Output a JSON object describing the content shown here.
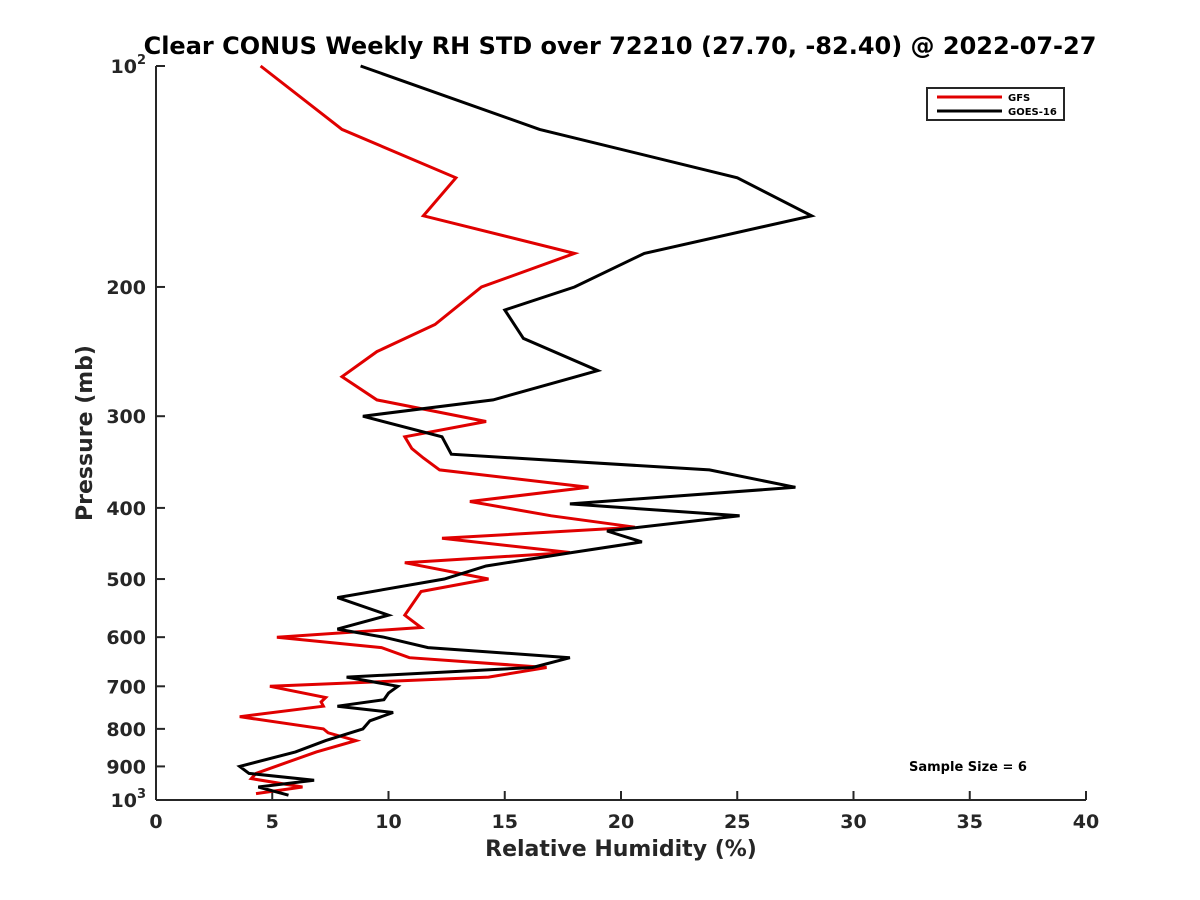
{
  "chart_data": {
    "type": "line",
    "title": "Clear CONUS Weekly RH STD over 72210 (27.70, -82.40) @ 2022-07-27",
    "xlabel": "Relative Humidity (%)",
    "ylabel": "Pressure (mb)",
    "xlim": [
      0,
      40
    ],
    "ylim": [
      100,
      1000
    ],
    "y_scale": "log",
    "y_reversed": true,
    "x_ticks": [
      "0",
      "5",
      "10",
      "15",
      "20",
      "25",
      "30",
      "35",
      "40"
    ],
    "x_tick_values": [
      0,
      5,
      10,
      15,
      20,
      25,
      30,
      35,
      40
    ],
    "y_ticks": [
      {
        "value": 100,
        "base": "10",
        "exp": "2"
      },
      {
        "value": 200,
        "base": "200",
        "exp": ""
      },
      {
        "value": 300,
        "base": "300",
        "exp": ""
      },
      {
        "value": 400,
        "base": "400",
        "exp": ""
      },
      {
        "value": 500,
        "base": "500",
        "exp": ""
      },
      {
        "value": 600,
        "base": "600",
        "exp": ""
      },
      {
        "value": 700,
        "base": "700",
        "exp": ""
      },
      {
        "value": 800,
        "base": "800",
        "exp": ""
      },
      {
        "value": 900,
        "base": "900",
        "exp": ""
      },
      {
        "value": 1000,
        "base": "10",
        "exp": "3"
      }
    ],
    "grid": false,
    "legend_position": "top-right",
    "annotation": "Sample Size = 6",
    "series": [
      {
        "name": "GFS",
        "color": "#e00000",
        "x": [
          4.5,
          8.0,
          12.9,
          11.5,
          18.0,
          14.0,
          12.0,
          9.5,
          8.0,
          9.5,
          14.2,
          10.7,
          11.0,
          11.5,
          12.2,
          18.6,
          13.5,
          17.0,
          20.6,
          12.3,
          17.8,
          10.7,
          14.3,
          11.4,
          10.7,
          11.4,
          5.2,
          9.7,
          10.9,
          16.8,
          14.3,
          4.9,
          7.3,
          7.1,
          7.2,
          3.6,
          7.2,
          7.4,
          8.6,
          6.9,
          4.3,
          4.1,
          6.3,
          4.3
        ],
        "y": [
          100,
          122,
          142,
          160,
          180,
          200,
          225,
          245,
          265,
          285,
          305,
          320,
          332,
          342,
          355,
          375,
          392,
          410,
          425,
          440,
          460,
          475,
          500,
          520,
          560,
          582,
          600,
          620,
          640,
          660,
          680,
          700,
          725,
          735,
          745,
          770,
          800,
          810,
          830,
          860,
          920,
          935,
          960,
          980
        ]
      },
      {
        "name": "GOES-16",
        "color": "#000000",
        "x": [
          8.8,
          16.5,
          25.0,
          28.2,
          21.0,
          18.0,
          15.0,
          15.8,
          19.0,
          14.5,
          8.9,
          12.3,
          12.7,
          23.8,
          27.5,
          17.8,
          25.1,
          19.4,
          20.9,
          17.9,
          14.2,
          12.4,
          7.8,
          10.0,
          7.8,
          9.8,
          11.7,
          17.8,
          16.2,
          8.2,
          10.4,
          10.0,
          9.8,
          7.8,
          10.2,
          9.2,
          8.9,
          7.3,
          6.0,
          3.6,
          4.0,
          6.8,
          4.4,
          5.7
        ],
        "y": [
          100,
          122,
          142,
          160,
          180,
          200,
          215,
          235,
          260,
          285,
          300,
          320,
          338,
          355,
          375,
          395,
          410,
          430,
          445,
          460,
          480,
          500,
          530,
          560,
          585,
          600,
          620,
          640,
          660,
          680,
          700,
          715,
          730,
          745,
          760,
          780,
          800,
          830,
          860,
          900,
          920,
          940,
          960,
          985
        ]
      }
    ]
  }
}
